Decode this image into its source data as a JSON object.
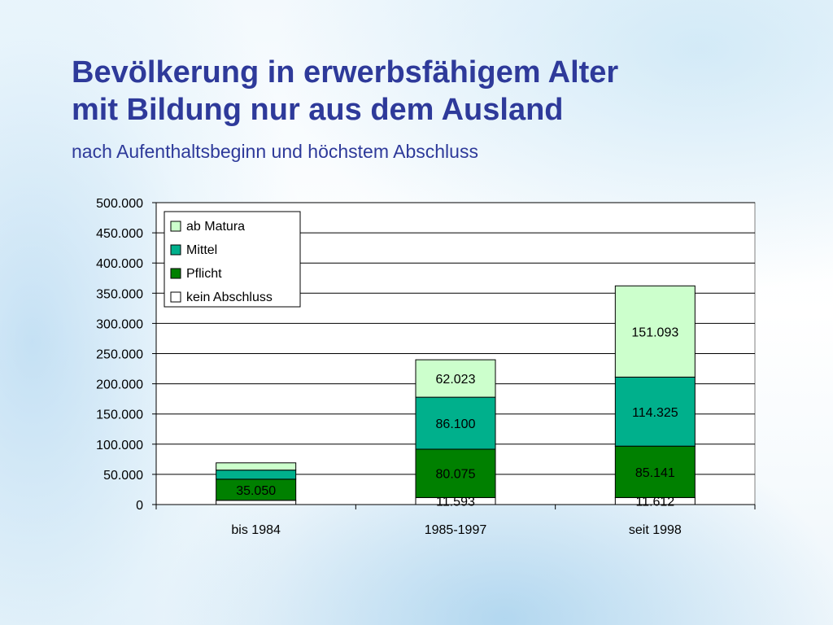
{
  "slide": {
    "title_line1": "Bevölkerung in erwerbsfähigem Alter",
    "title_line2": "mit Bildung nur aus dem Ausland",
    "subtitle": "nach Aufenthaltsbeginn und höchstem Abschluss"
  },
  "colors": {
    "title": "#2e3a9a",
    "kein Abschluss": "#ffffff",
    "Pflicht": "#008000",
    "Mittel": "#00b08c",
    "ab Matura": "#ccffcc"
  },
  "chart_data": {
    "type": "bar",
    "stacked": true,
    "categories": [
      "bis 1984",
      "1985-1997",
      "seit 1998"
    ],
    "series": [
      {
        "name": "kein Abschluss",
        "values": [
          7000,
          11593,
          11612
        ],
        "labels": [
          "",
          "11.593",
          "11.612"
        ]
      },
      {
        "name": "Pflicht",
        "values": [
          35050,
          80075,
          85141
        ],
        "labels": [
          "35.050",
          "80.075",
          "85.141"
        ]
      },
      {
        "name": "Mittel",
        "values": [
          15000,
          86100,
          114325
        ],
        "labels": [
          "",
          "86.100",
          "114.325"
        ]
      },
      {
        "name": "ab Matura",
        "values": [
          12000,
          62023,
          151093
        ],
        "labels": [
          "",
          "62.023",
          "151.093"
        ]
      }
    ],
    "legend": [
      "ab Matura",
      "Mittel",
      "Pflicht",
      "kein Abschluss"
    ],
    "legend_position": "top-left",
    "ylim": [
      0,
      500000
    ],
    "yticks": [
      0,
      50000,
      100000,
      150000,
      200000,
      250000,
      300000,
      350000,
      400000,
      450000,
      500000
    ],
    "ytick_labels": [
      "0",
      "50.000",
      "100.000",
      "150.000",
      "200.000",
      "250.000",
      "300.000",
      "350.000",
      "400.000",
      "450.000",
      "500.000"
    ],
    "grid": true
  }
}
